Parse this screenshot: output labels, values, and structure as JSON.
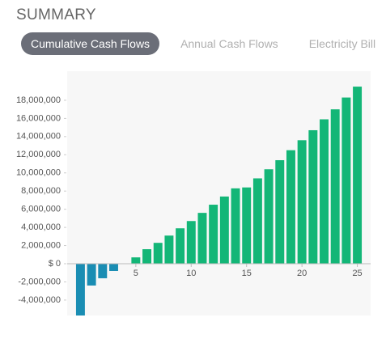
{
  "header": {
    "title": "SUMMARY"
  },
  "tabs": [
    {
      "label": "Cumulative Cash Flows",
      "active": true
    },
    {
      "label": "Annual Cash Flows",
      "active": false
    },
    {
      "label": "Electricity Bill",
      "active": false
    }
  ],
  "chart_data": {
    "type": "bar",
    "x": [
      0,
      1,
      2,
      3,
      4,
      5,
      6,
      7,
      8,
      9,
      10,
      11,
      12,
      13,
      14,
      15,
      16,
      17,
      18,
      19,
      20,
      21,
      22,
      23,
      24,
      25
    ],
    "values": [
      -5700000,
      -2400000,
      -1600000,
      -800000,
      0,
      700000,
      1600000,
      2300000,
      3100000,
      3900000,
      4700000,
      5600000,
      6500000,
      7400000,
      8300000,
      8400000,
      9400000,
      10400000,
      11400000,
      12500000,
      13600000,
      14700000,
      15900000,
      17000000,
      18300000,
      19500000
    ],
    "positive_color": "#13b677",
    "negative_color": "#1a8db3",
    "xlim": [
      -1.2,
      26.2
    ],
    "xticks": [
      5,
      10,
      15,
      20,
      25
    ],
    "ylim": [
      -5700000,
      21200000
    ],
    "yticks": [
      {
        "value": -4000000,
        "label": "-4,000,000"
      },
      {
        "value": -2000000,
        "label": "-2,000,000"
      },
      {
        "value": 0,
        "label": "$ 0"
      },
      {
        "value": 2000000,
        "label": "2,000,000"
      },
      {
        "value": 4000000,
        "label": "4,000,000"
      },
      {
        "value": 6000000,
        "label": "6,000,000"
      },
      {
        "value": 8000000,
        "label": "8,000,000"
      },
      {
        "value": 10000000,
        "label": "10,000,000"
      },
      {
        "value": 12000000,
        "label": "12,000,000"
      },
      {
        "value": 14000000,
        "label": "14,000,000"
      },
      {
        "value": 16000000,
        "label": "16,000,000"
      },
      {
        "value": 18000000,
        "label": "18,000,000"
      }
    ]
  }
}
